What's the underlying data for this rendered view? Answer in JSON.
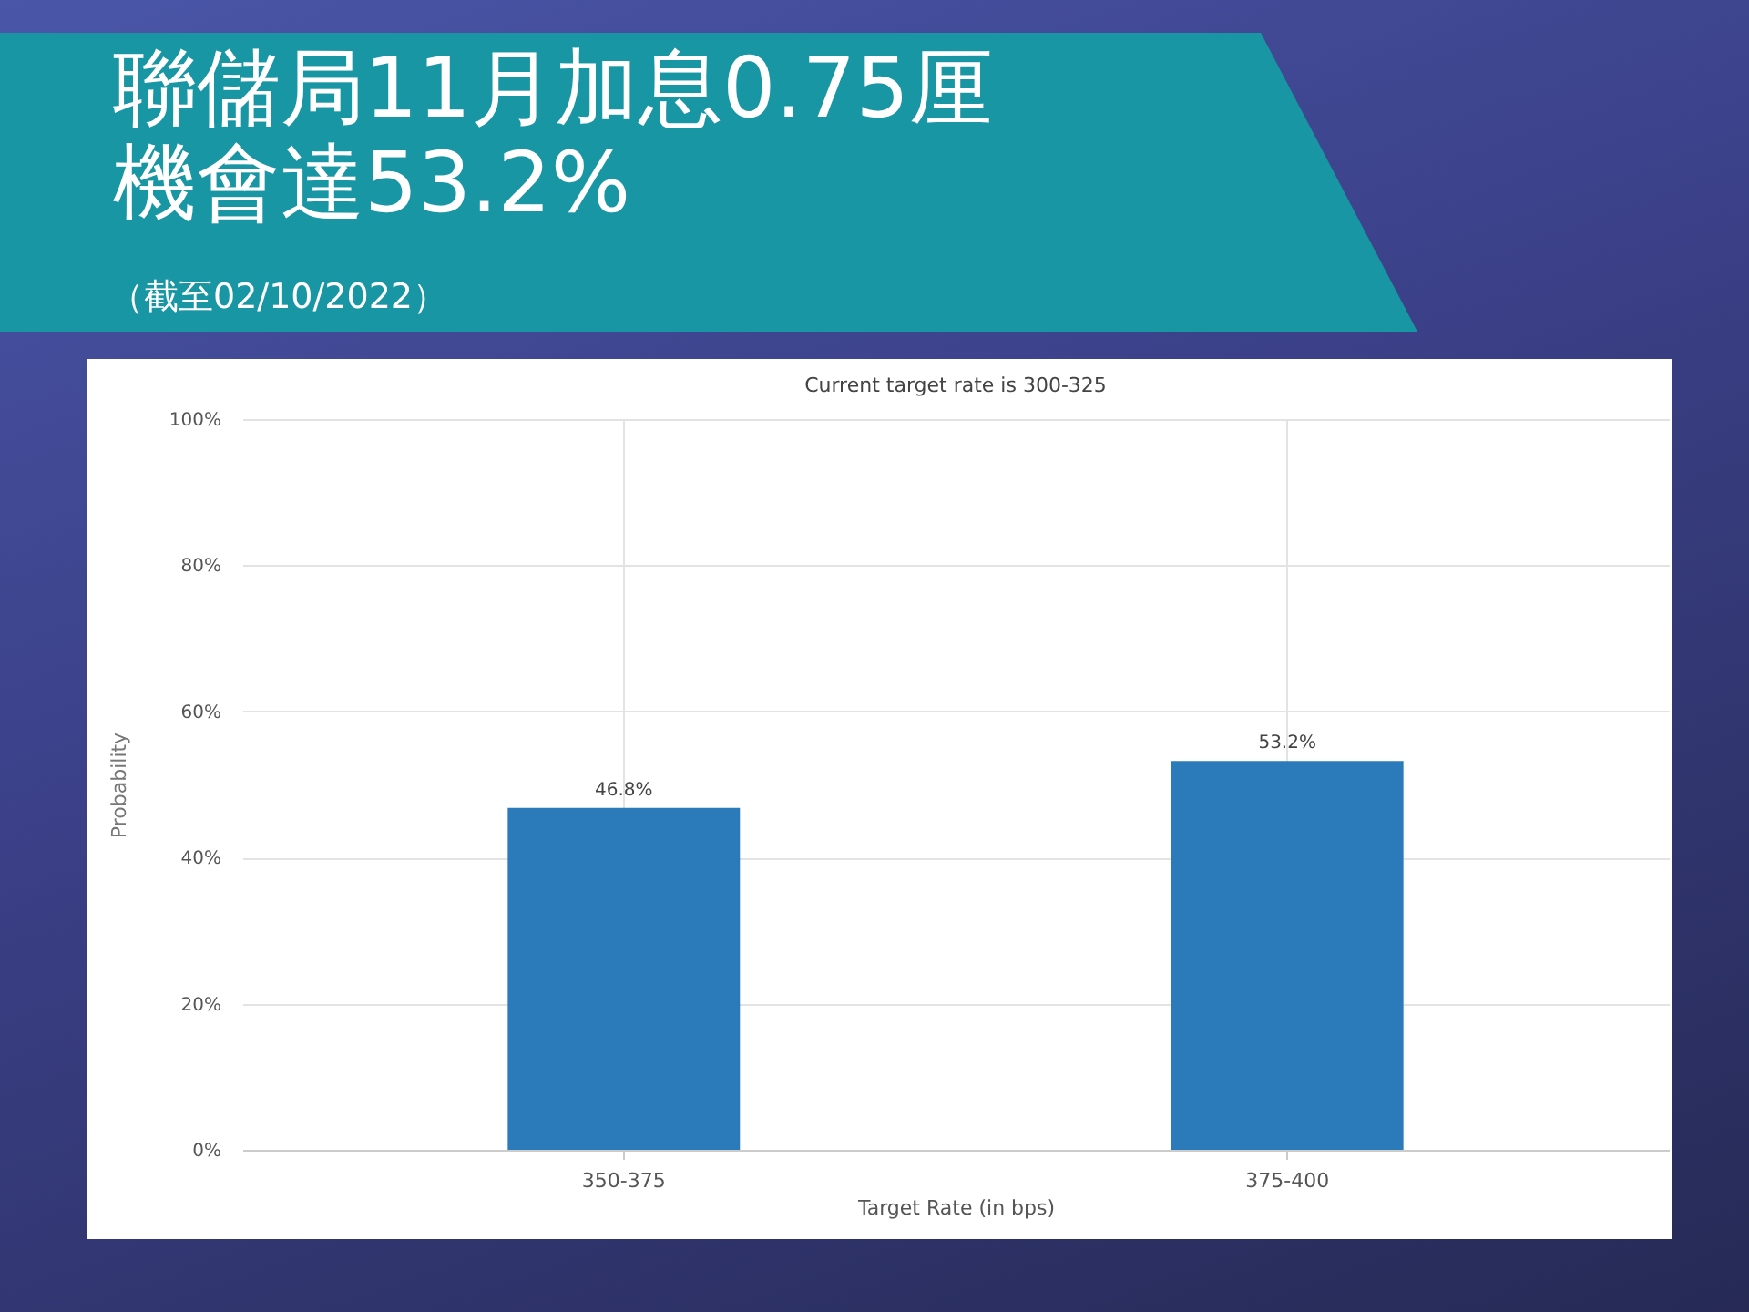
{
  "chart_data": {
    "type": "bar",
    "title": "聯儲局11月加息0.75厘機會達53.2%",
    "subtitle": "Current target rate is 300-325",
    "annotations": [
      "（截至02/10/2022）"
    ],
    "xlabel": "Target Rate (in bps)",
    "ylabel": "Probability",
    "categories": [
      "350-375",
      "375-400"
    ],
    "values": [
      46.8,
      53.2
    ],
    "color": "#2b7bba",
    "value_labels": [
      "46.8%",
      "53.2%"
    ],
    "ylim": [
      0,
      100
    ],
    "yticks": [
      {
        "value": 0,
        "label": "0%"
      },
      {
        "value": 20,
        "label": "20%"
      },
      {
        "value": 40,
        "label": "40%"
      },
      {
        "value": 60,
        "label": "60%"
      },
      {
        "value": 80,
        "label": "80%"
      },
      {
        "value": 100,
        "label": "100%"
      }
    ],
    "grid": true
  }
}
